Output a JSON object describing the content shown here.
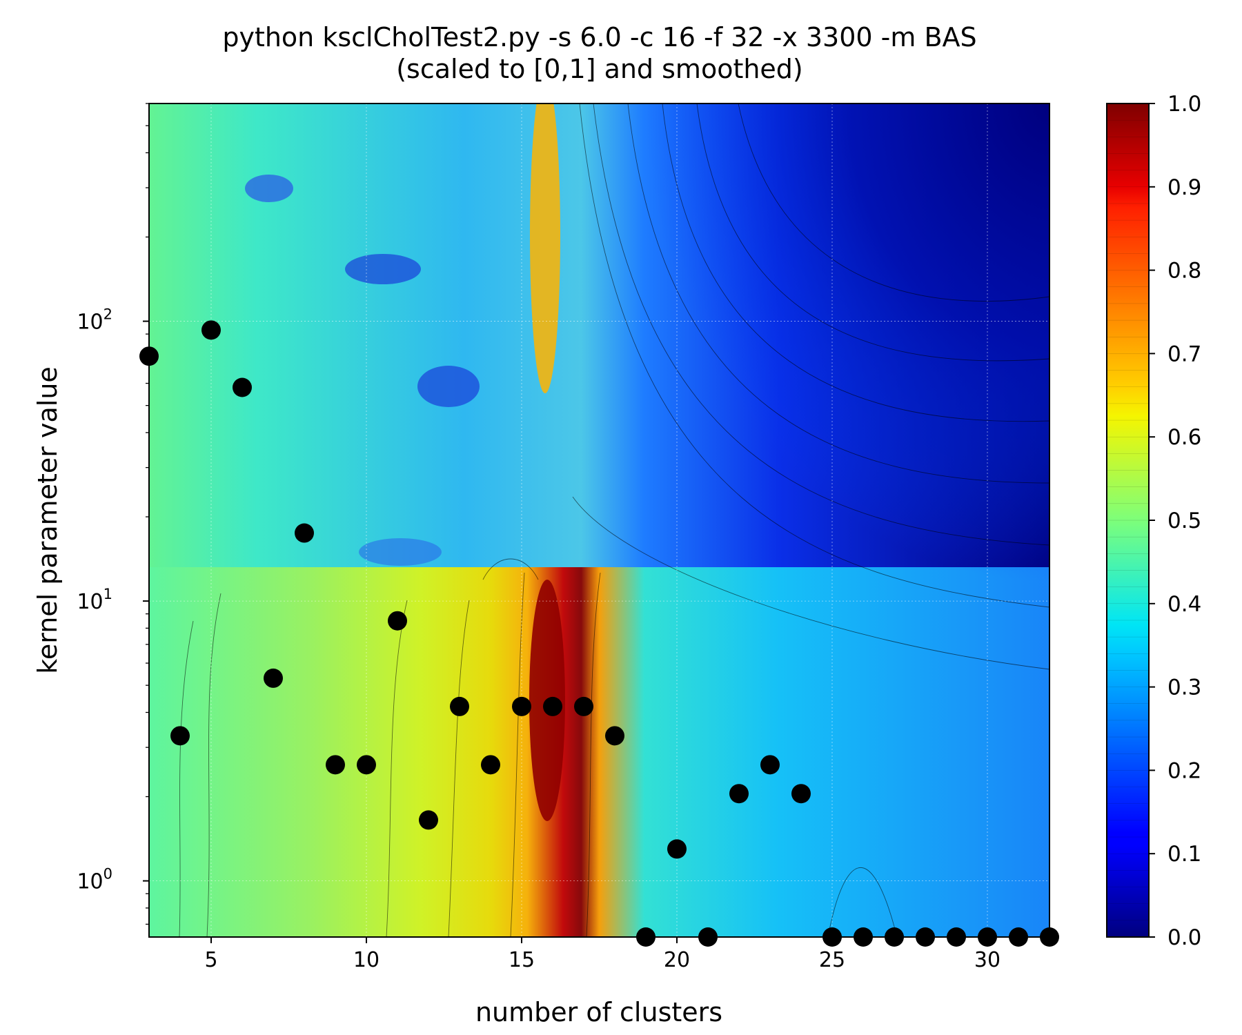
{
  "chart_data": {
    "type": "contourf",
    "title": "python ksclCholTest2.py -s 6.0 -c 16 -f 32 -x 3300 -m BAS",
    "subtitle": "(scaled to [0,1] and smoothed)",
    "xlabel": "number of clusters",
    "ylabel": "kernel parameter value",
    "xlim": [
      3,
      32
    ],
    "ylim": [
      0.63,
      600
    ],
    "yscale": "log",
    "x_ticks": [
      5,
      10,
      15,
      20,
      25,
      30
    ],
    "y_ticks": [
      {
        "value": 1,
        "base": "10",
        "exp": "0"
      },
      {
        "value": 10,
        "base": "10",
        "exp": "1"
      },
      {
        "value": 100,
        "base": "10",
        "exp": "2"
      }
    ],
    "grid": true,
    "colormap": "jet",
    "colorbar": {
      "min": 0.0,
      "max": 1.0,
      "ticks": [
        "0.0",
        "0.1",
        "0.2",
        "0.3",
        "0.4",
        "0.5",
        "0.6",
        "0.7",
        "0.8",
        "0.9",
        "1.0"
      ]
    },
    "points": [
      {
        "x": 3,
        "y": 75
      },
      {
        "x": 4,
        "y": 3.3
      },
      {
        "x": 5,
        "y": 93
      },
      {
        "x": 6,
        "y": 58
      },
      {
        "x": 7,
        "y": 5.3
      },
      {
        "x": 8,
        "y": 17.5
      },
      {
        "x": 9,
        "y": 2.6
      },
      {
        "x": 10,
        "y": 2.6
      },
      {
        "x": 11,
        "y": 8.5
      },
      {
        "x": 12,
        "y": 1.65
      },
      {
        "x": 13,
        "y": 4.2
      },
      {
        "x": 14,
        "y": 2.6
      },
      {
        "x": 15,
        "y": 4.2
      },
      {
        "x": 16,
        "y": 4.2
      },
      {
        "x": 17,
        "y": 4.2
      },
      {
        "x": 18,
        "y": 3.3
      },
      {
        "x": 19,
        "y": 0.63
      },
      {
        "x": 20,
        "y": 1.3
      },
      {
        "x": 21,
        "y": 0.63
      },
      {
        "x": 22,
        "y": 2.05
      },
      {
        "x": 23,
        "y": 2.6
      },
      {
        "x": 24,
        "y": 2.05
      },
      {
        "x": 25,
        "y": 0.63
      },
      {
        "x": 26,
        "y": 0.63
      },
      {
        "x": 27,
        "y": 0.63
      },
      {
        "x": 28,
        "y": 0.63
      },
      {
        "x": 29,
        "y": 0.63
      },
      {
        "x": 30,
        "y": 0.63
      },
      {
        "x": 31,
        "y": 0.63
      },
      {
        "x": 32,
        "y": 0.63
      }
    ]
  }
}
